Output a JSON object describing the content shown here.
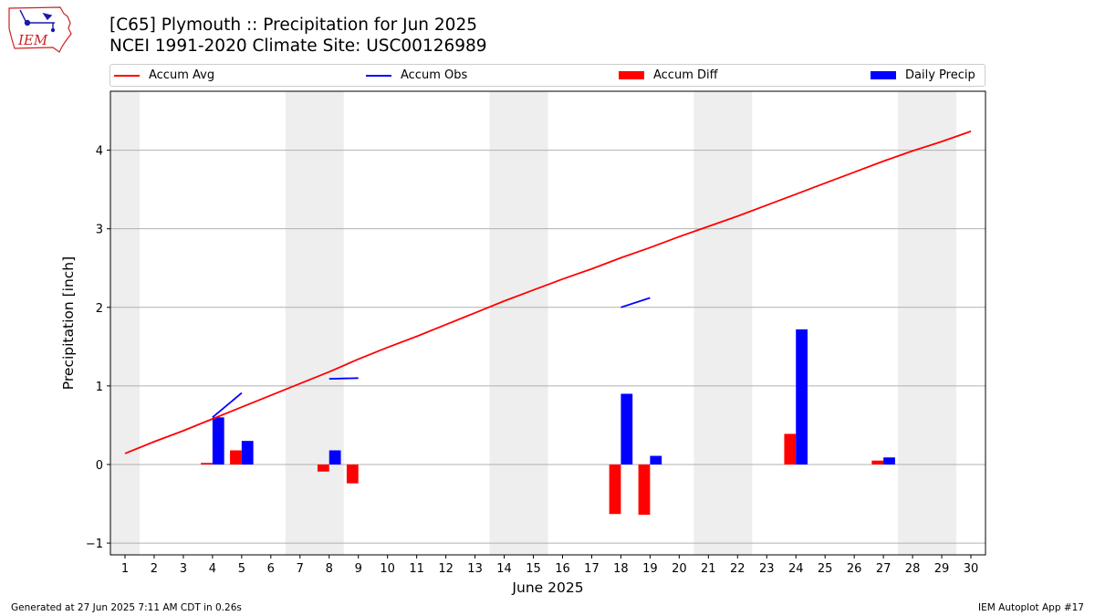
{
  "header": {
    "title_line1": "[C65] Plymouth :: Precipitation for Jun 2025",
    "title_line2": "NCEI 1991-2020 Climate Site: USC00126989",
    "logo_text": "IEM"
  },
  "legend": [
    {
      "label": "Accum Avg",
      "kind": "line",
      "color": "#ff0000"
    },
    {
      "label": "Accum Obs",
      "kind": "line",
      "color": "#0000ff"
    },
    {
      "label": "Accum Diff",
      "kind": "bar",
      "color": "#ff0000"
    },
    {
      "label": "Daily Precip",
      "kind": "bar",
      "color": "#0000ff"
    }
  ],
  "footer": {
    "left": "Generated at 27 Jun 2025 7:11 AM CDT in 0.26s",
    "right": "IEM Autoplot App #17"
  },
  "chart_data": {
    "type": "bar",
    "title": "[C65] Plymouth :: Precipitation for Jun 2025",
    "subtitle": "NCEI 1991-2020 Climate Site: USC00126989",
    "xlabel": "June 2025",
    "ylabel": "Precipitation [inch]",
    "xlim": [
      0.5,
      30.5
    ],
    "ylim": [
      -1.15,
      4.75
    ],
    "yticks": [
      -1,
      0,
      1,
      2,
      3,
      4
    ],
    "xticks": [
      1,
      2,
      3,
      4,
      5,
      6,
      7,
      8,
      9,
      10,
      11,
      12,
      13,
      14,
      15,
      16,
      17,
      18,
      19,
      20,
      21,
      22,
      23,
      24,
      25,
      26,
      27,
      28,
      29,
      30
    ],
    "grid": "horizontal",
    "legend_placement": "top",
    "weekend_shading": [
      1,
      7,
      8,
      14,
      15,
      21,
      22,
      28,
      29
    ],
    "shading_color": "#eeeeee",
    "series": [
      {
        "name": "Accum Avg",
        "kind": "line",
        "color": "#ff0000",
        "x": [
          1,
          2,
          3,
          4,
          5,
          6,
          7,
          8,
          9,
          10,
          11,
          12,
          13,
          14,
          15,
          16,
          17,
          18,
          19,
          20,
          21,
          22,
          23,
          24,
          25,
          26,
          27,
          28,
          29,
          30
        ],
        "values": [
          0.14,
          0.29,
          0.43,
          0.58,
          0.73,
          0.88,
          1.03,
          1.18,
          1.34,
          1.49,
          1.63,
          1.78,
          1.93,
          2.08,
          2.22,
          2.36,
          2.49,
          2.63,
          2.76,
          2.9,
          3.03,
          3.16,
          3.3,
          3.44,
          3.58,
          3.72,
          3.86,
          3.99,
          4.11,
          4.24
        ]
      },
      {
        "name": "Accum Obs",
        "kind": "line",
        "color": "#0000ff",
        "segments": [
          {
            "x": [
              4,
              5
            ],
            "values": [
              0.6,
              0.91
            ]
          },
          {
            "x": [
              8,
              9
            ],
            "values": [
              1.09,
              1.1
            ]
          },
          {
            "x": [
              18,
              19
            ],
            "values": [
              2.0,
              2.12
            ]
          }
        ]
      },
      {
        "name": "Accum Diff",
        "kind": "bar",
        "color": "#ff0000",
        "x": [
          4,
          5,
          8,
          9,
          18,
          19,
          24,
          27
        ],
        "values": [
          0.02,
          0.18,
          -0.09,
          -0.24,
          -0.63,
          -0.64,
          0.39,
          0.05
        ]
      },
      {
        "name": "Daily Precip",
        "kind": "bar",
        "color": "#0000ff",
        "x": [
          4,
          5,
          8,
          18,
          19,
          24,
          27
        ],
        "values": [
          0.6,
          0.3,
          0.18,
          0.9,
          0.11,
          1.72,
          0.09
        ]
      }
    ]
  }
}
